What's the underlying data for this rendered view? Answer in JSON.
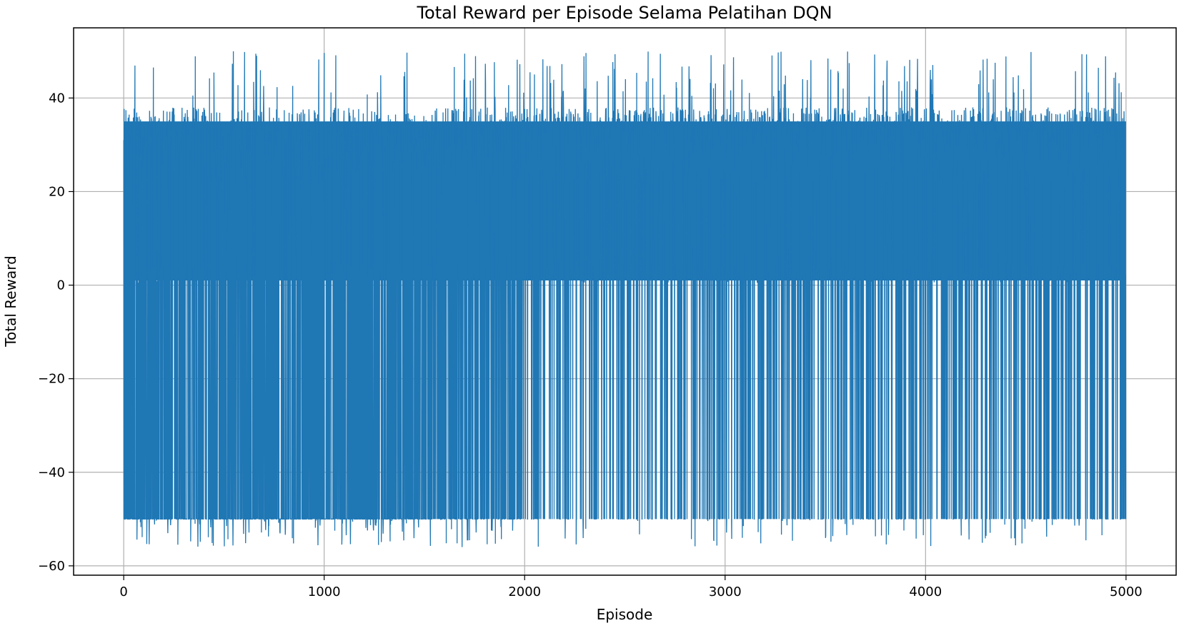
{
  "chart_data": {
    "type": "line",
    "title": "Total Reward per Episode Selama Pelatihan DQN",
    "xlabel": "Episode",
    "ylabel": "Total Reward",
    "xlim": [
      -250,
      5250
    ],
    "ylim": [
      -62,
      55
    ],
    "xticks": [
      0,
      1000,
      2000,
      3000,
      4000,
      5000
    ],
    "xtick_labels": [
      "0",
      "1000",
      "2000",
      "3000",
      "4000",
      "5000"
    ],
    "yticks": [
      -60,
      -40,
      -20,
      0,
      20,
      40
    ],
    "ytick_labels": [
      "−60",
      "−40",
      "−20",
      "0",
      "20",
      "40"
    ],
    "grid": true,
    "series": [
      {
        "color": "#1f77b4",
        "episodes": 5000,
        "typical_range": [
          -50,
          38
        ],
        "max": 50.5,
        "min": -57,
        "band_low": 1,
        "band_high": 35,
        "values_summary": "Rewards oscillate rapidly each episode between about -50 and about 35-40; a dense band stays between roughly 1 and 35 throughout, with occasional peaks near 45-50 and occasional drops to -51 to -57."
      }
    ]
  }
}
